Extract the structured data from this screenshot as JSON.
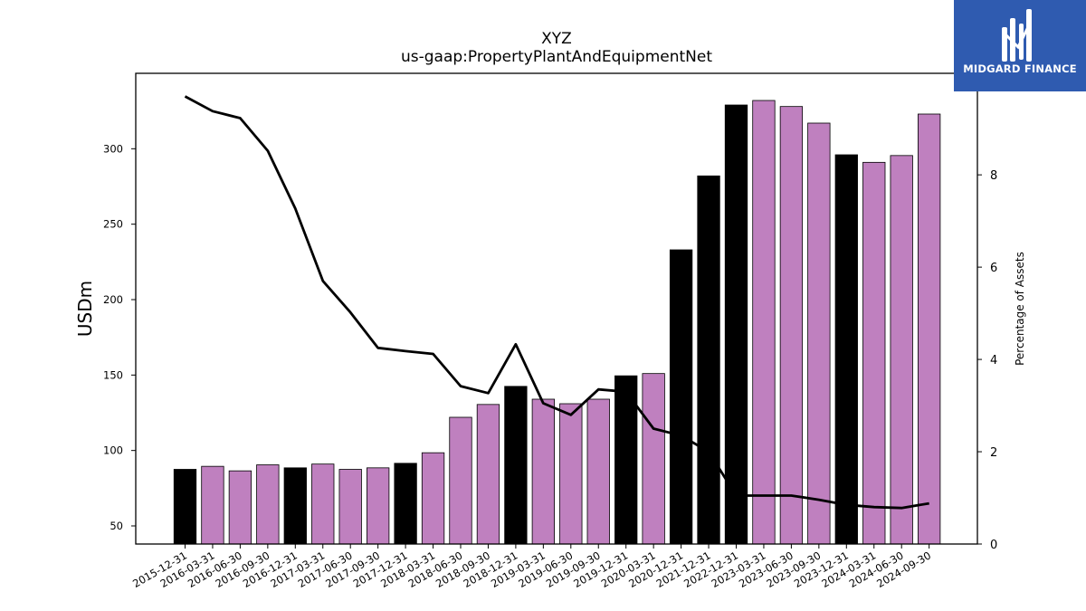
{
  "logo": {
    "text": "MIDGARD FINANCE",
    "icon": "midgard-logo-icon",
    "bg_color": "#2f5bb0"
  },
  "chart_data": {
    "type": "bar",
    "title": "XYZ",
    "subtitle": "us-gaap:PropertyPlantAndEquipmentNet",
    "ylabel": "USDm",
    "y2label": "Percentage of Assets",
    "ylim": [
      38,
      350
    ],
    "y2lim": [
      0,
      10.2
    ],
    "yticks": [
      50,
      100,
      150,
      200,
      250,
      300
    ],
    "y2ticks": [
      0,
      2,
      4,
      6,
      8
    ],
    "categories": [
      "2015-12-31",
      "2016-03-31",
      "2016-06-30",
      "2016-09-30",
      "2016-12-31",
      "2017-03-31",
      "2017-06-30",
      "2017-09-30",
      "2017-12-31",
      "2018-03-31",
      "2018-06-30",
      "2018-09-30",
      "2018-12-31",
      "2019-03-31",
      "2019-06-30",
      "2019-09-30",
      "2019-12-31",
      "2020-03-31",
      "2020-12-31",
      "2021-12-31",
      "2022-12-31",
      "2023-03-31",
      "2023-06-30",
      "2023-09-30",
      "2023-12-31",
      "2024-03-31",
      "2024-06-30",
      "2024-09-30"
    ],
    "series": [
      {
        "type": "bar",
        "values": [
          87.5,
          89.5,
          86.5,
          90.5,
          88.5,
          91,
          87.5,
          88.5,
          91.5,
          98.5,
          122,
          130.5,
          142.5,
          134,
          131,
          134,
          149.5,
          151,
          233,
          282,
          329,
          332,
          328,
          317,
          296,
          291,
          295.5,
          323
        ],
        "colors": [
          "#000000",
          "#bf80bf",
          "#bf80bf",
          "#bf80bf",
          "#000000",
          "#bf80bf",
          "#bf80bf",
          "#bf80bf",
          "#000000",
          "#bf80bf",
          "#bf80bf",
          "#bf80bf",
          "#000000",
          "#bf80bf",
          "#bf80bf",
          "#bf80bf",
          "#000000",
          "#bf80bf",
          "#000000",
          "#000000",
          "#000000",
          "#bf80bf",
          "#bf80bf",
          "#bf80bf",
          "#000000",
          "#bf80bf",
          "#bf80bf",
          "#bf80bf"
        ]
      },
      {
        "type": "line",
        "axis": "right",
        "color": "#000000",
        "values": [
          9.7,
          9.38,
          9.23,
          8.52,
          7.27,
          5.7,
          5.02,
          4.25,
          4.18,
          4.12,
          3.42,
          3.27,
          4.33,
          3.05,
          2.8,
          3.35,
          3.3,
          2.5,
          2.35,
          2.0,
          1.05,
          1.05,
          1.05,
          0.96,
          0.85,
          0.8,
          0.78,
          0.88
        ]
      }
    ],
    "grid": false,
    "legend": "none"
  }
}
